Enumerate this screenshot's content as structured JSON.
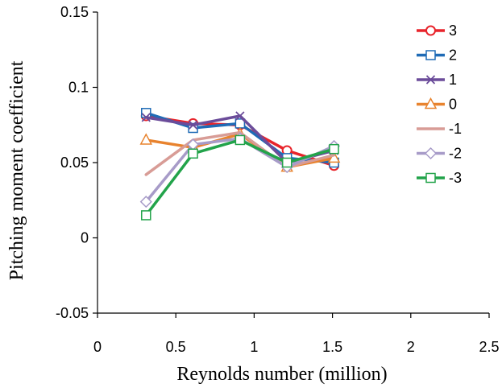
{
  "chart_data": {
    "type": "line",
    "title": "",
    "xlabel": "Reynolds number (million)",
    "ylabel": "Pitching moment coefficient",
    "xlim": [
      0,
      2.5
    ],
    "ylim": [
      -0.05,
      0.15
    ],
    "x_ticks": [
      "0",
      "0.5",
      "1",
      "1.5",
      "2",
      "2.5"
    ],
    "y_ticks": [
      "-0.05",
      "0",
      "0.05",
      "0.1",
      "0.15"
    ],
    "x_tick_values": [
      0,
      0.5,
      1,
      1.5,
      2,
      2.5
    ],
    "y_tick_values": [
      -0.05,
      0,
      0.05,
      0.1,
      0.15
    ],
    "grid": false,
    "legend_position": "top-right",
    "x": [
      0.31,
      0.61,
      0.91,
      1.21,
      1.51
    ],
    "series": [
      {
        "name": "3",
        "color": "#e8242b",
        "marker": "circle",
        "values": [
          0.081,
          0.076,
          0.075,
          0.058,
          0.048
        ]
      },
      {
        "name": "2",
        "color": "#1f6bb6",
        "marker": "square",
        "values": [
          0.083,
          0.073,
          0.076,
          0.053,
          0.05
        ]
      },
      {
        "name": "1",
        "color": "#6b4c9a",
        "marker": "x",
        "values": [
          0.08,
          0.075,
          0.081,
          0.05,
          0.058
        ]
      },
      {
        "name": "0",
        "color": "#e8832e",
        "marker": "triangle",
        "values": [
          0.065,
          0.06,
          0.069,
          0.047,
          0.053
        ]
      },
      {
        "name": "-1",
        "color": "#d89c96",
        "marker": "none",
        "values": [
          0.042,
          0.065,
          0.07,
          0.047,
          0.055
        ]
      },
      {
        "name": "-2",
        "color": "#a79bc8",
        "marker": "diamond",
        "values": [
          0.024,
          0.062,
          0.066,
          0.047,
          0.061
        ]
      },
      {
        "name": "-3",
        "color": "#22a34a",
        "marker": "square",
        "values": [
          0.015,
          0.056,
          0.065,
          0.05,
          0.059
        ]
      }
    ]
  }
}
